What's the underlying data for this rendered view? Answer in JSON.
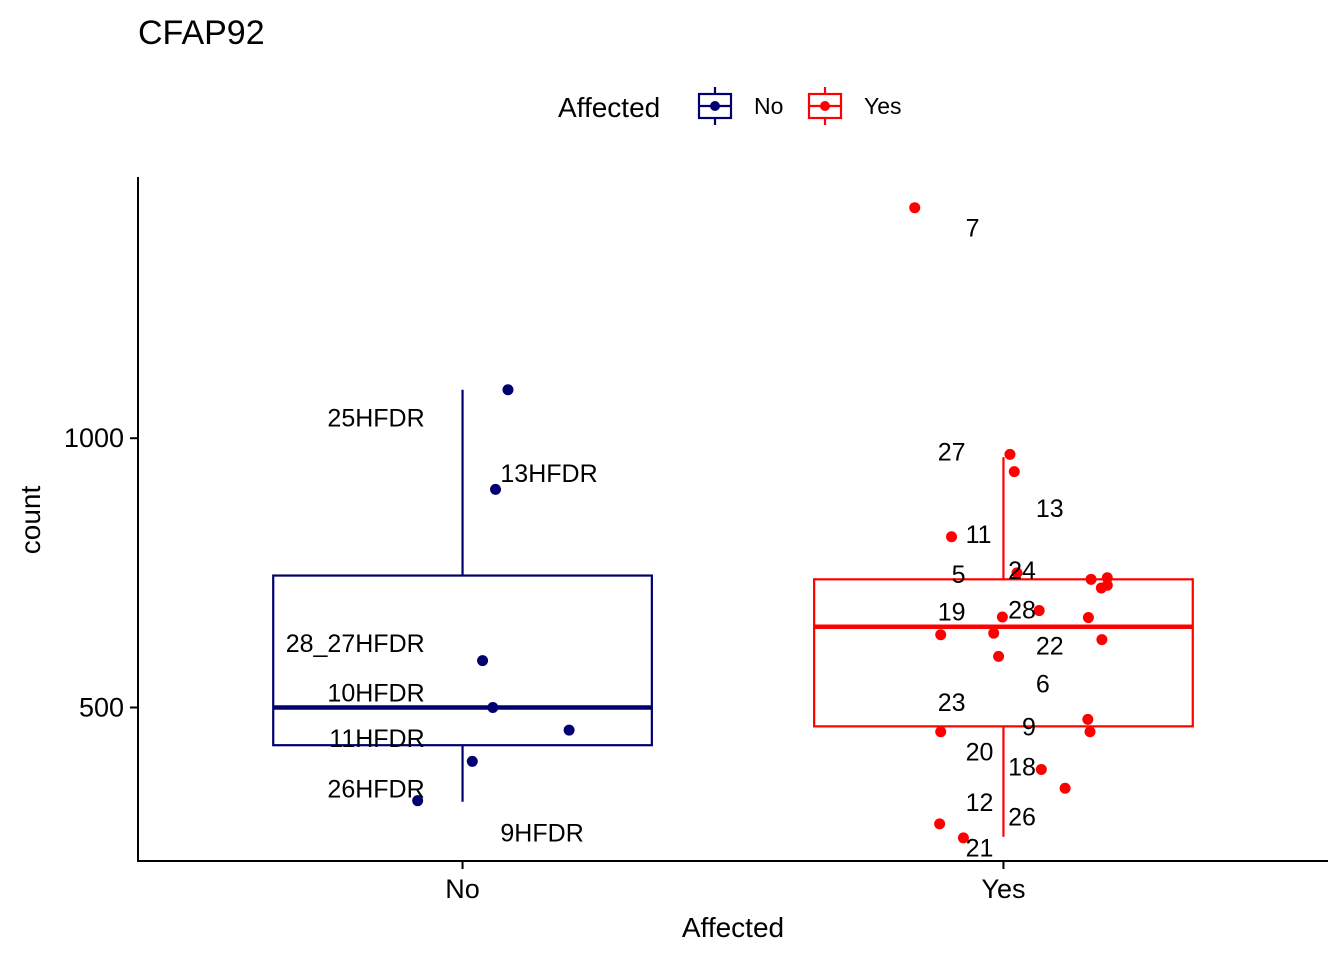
{
  "chart_data": {
    "type": "boxplot",
    "title": "CFAP92",
    "xlabel": "Affected",
    "ylabel": "count",
    "ylim": [
      215,
      1485
    ],
    "yticks": [
      500,
      1000
    ],
    "grid": false,
    "legend": {
      "title": "Affected",
      "placement": "top",
      "entries": [
        {
          "label": "No",
          "color": "#000070"
        },
        {
          "label": "Yes",
          "color": "#FF0000"
        }
      ]
    },
    "categories": [
      "No",
      "Yes"
    ],
    "boxes": [
      {
        "category": "No",
        "color": "#000070",
        "min": 325,
        "q1": 430,
        "median": 500,
        "q3": 745,
        "max": 1090
      },
      {
        "category": "Yes",
        "color": "#FF0000",
        "min": 260,
        "q1": 465,
        "median": 650,
        "q3": 738,
        "max": 965
      }
    ],
    "points": [
      {
        "group": "No",
        "x": 1.084,
        "y": 1090,
        "label": "25HFDR",
        "ly": 1038,
        "lx": 0.93
      },
      {
        "group": "No",
        "x": 1.061,
        "y": 905,
        "label": "13HFDR",
        "ly": 935,
        "lx": 1.07
      },
      {
        "group": "No",
        "x": 1.037,
        "y": 587,
        "label": "28_27HFDR",
        "ly": 620,
        "lx": 0.93
      },
      {
        "group": "No",
        "x": 1.056,
        "y": 500,
        "label": "10HFDR",
        "ly": 528,
        "lx": 0.93
      },
      {
        "group": "No",
        "x": 1.197,
        "y": 458,
        "label": "11HFDR",
        "ly": 443,
        "lx": 0.93
      },
      {
        "group": "No",
        "x": 1.018,
        "y": 400,
        "label": "26HFDR",
        "ly": 350,
        "lx": 0.93
      },
      {
        "group": "No",
        "x": 0.917,
        "y": 327,
        "label": "9HFDR",
        "ly": 268,
        "lx": 1.07
      },
      {
        "group": "Yes",
        "x": 1.836,
        "y": 1428,
        "label": "7",
        "ly": 1391,
        "lx": 1.93
      },
      {
        "group": "Yes",
        "x": 2.012,
        "y": 970,
        "label": "27",
        "ly": 975,
        "lx": 1.93
      },
      {
        "group": "Yes",
        "x": 2.02,
        "y": 938,
        "label": "13",
        "ly": 870,
        "lx": 2.06
      },
      {
        "group": "Yes",
        "x": 1.904,
        "y": 817,
        "label": "11",
        "ly": 822,
        "lx": 1.93
      },
      {
        "group": "Yes",
        "x": 2.025,
        "y": 750,
        "label": "5",
        "ly": 748,
        "lx": 1.93
      },
      {
        "group": "Yes",
        "x": 2.162,
        "y": 738,
        "label": "24",
        "ly": 755,
        "lx": 2.06
      },
      {
        "group": "Yes",
        "x": 2.181,
        "y": 722,
        "label": "28",
        "ly": 682,
        "lx": 2.06
      },
      {
        "group": "Yes",
        "x": 2.192,
        "y": 741,
        "label": "",
        "ly": 0,
        "lx": 0
      },
      {
        "group": "Yes",
        "x": 2.066,
        "y": 680,
        "label": "19",
        "ly": 678,
        "lx": 1.93
      },
      {
        "group": "Yes",
        "x": 2.157,
        "y": 667,
        "label": "",
        "ly": 0,
        "lx": 0
      },
      {
        "group": "Yes",
        "x": 2.192,
        "y": 727,
        "label": "",
        "ly": 0,
        "lx": 0
      },
      {
        "group": "Yes",
        "x": 1.884,
        "y": 635,
        "label": "",
        "ly": 0,
        "lx": 0
      },
      {
        "group": "Yes",
        "x": 1.982,
        "y": 638,
        "label": "22",
        "ly": 615,
        "lx": 2.06
      },
      {
        "group": "Yes",
        "x": 1.998,
        "y": 668,
        "label": "",
        "ly": 0,
        "lx": 0
      },
      {
        "group": "Yes",
        "x": 2.182,
        "y": 626,
        "label": "",
        "ly": 0,
        "lx": 0
      },
      {
        "group": "Yes",
        "x": 1.991,
        "y": 595,
        "label": "6",
        "ly": 545,
        "lx": 2.06
      },
      {
        "group": "Yes",
        "x": 2.156,
        "y": 478,
        "label": "23",
        "ly": 510,
        "lx": 1.93
      },
      {
        "group": "Yes",
        "x": 2.16,
        "y": 455,
        "label": "9",
        "ly": 465,
        "lx": 2.06
      },
      {
        "group": "Yes",
        "x": 1.884,
        "y": 455,
        "label": "20",
        "ly": 418,
        "lx": 1.93
      },
      {
        "group": "Yes",
        "x": 2.07,
        "y": 385,
        "label": "18",
        "ly": 390,
        "lx": 2.06
      },
      {
        "group": "Yes",
        "x": 2.114,
        "y": 350,
        "label": "26",
        "ly": 298,
        "lx": 2.06
      },
      {
        "group": "Yes",
        "x": 1.882,
        "y": 284,
        "label": "12",
        "ly": 325,
        "lx": 1.93
      },
      {
        "group": "Yes",
        "x": 1.926,
        "y": 258,
        "label": "21",
        "ly": 240,
        "lx": 1.93
      }
    ]
  }
}
